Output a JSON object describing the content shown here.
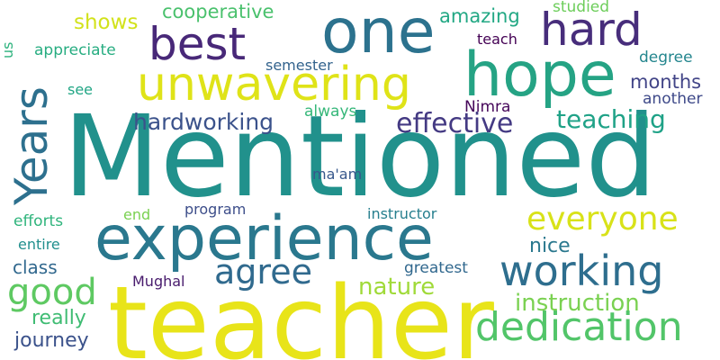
{
  "words": [
    {
      "text": "Mentioned",
      "color": "#21918c"
    },
    {
      "text": "teacher",
      "color": "#e8e419"
    },
    {
      "text": "experience",
      "color": "#2a788e"
    },
    {
      "text": "hope",
      "color": "#25a384"
    },
    {
      "text": "one",
      "color": "#2c728e"
    },
    {
      "text": "Years",
      "color": "#2d708e"
    },
    {
      "text": "working",
      "color": "#2e6e8e"
    },
    {
      "text": "unwavering",
      "color": "#dfe318"
    },
    {
      "text": "dedication",
      "color": "#52c569"
    },
    {
      "text": "best",
      "color": "#482878"
    },
    {
      "text": "hard",
      "color": "#472d7b"
    },
    {
      "text": "everyone",
      "color": "#d8e219"
    },
    {
      "text": "agree",
      "color": "#306a8e"
    },
    {
      "text": "good",
      "color": "#5ec962"
    },
    {
      "text": "teaching",
      "color": "#1fa287"
    },
    {
      "text": "effective",
      "color": "#443a83"
    },
    {
      "text": "hardworking",
      "color": "#3b528b"
    },
    {
      "text": "instruction",
      "color": "#7ad151"
    },
    {
      "text": "nature",
      "color": "#a0da39"
    },
    {
      "text": "amazing",
      "color": "#22a884"
    },
    {
      "text": "cooperative",
      "color": "#4ac16d"
    },
    {
      "text": "shows",
      "color": "#d2e21b"
    },
    {
      "text": "months",
      "color": "#414487"
    },
    {
      "text": "degree",
      "color": "#24868e"
    },
    {
      "text": "nice",
      "color": "#2a788e"
    },
    {
      "text": "really",
      "color": "#3fbc73"
    },
    {
      "text": "journey",
      "color": "#3b528b"
    },
    {
      "text": "class",
      "color": "#31688e"
    },
    {
      "text": "studied",
      "color": "#6ccd5a"
    },
    {
      "text": "teach",
      "color": "#440154"
    },
    {
      "text": "appreciate",
      "color": "#27ad81"
    },
    {
      "text": "another",
      "color": "#3e4989"
    },
    {
      "text": "semester",
      "color": "#33638d"
    },
    {
      "text": "always",
      "color": "#35b779"
    },
    {
      "text": "Nimra",
      "color": "#46075a"
    },
    {
      "text": "see",
      "color": "#21a685"
    },
    {
      "text": "ma'am",
      "color": "#38588c"
    },
    {
      "text": "efforts",
      "color": "#2fb47c"
    },
    {
      "text": "end",
      "color": "#7ad151"
    },
    {
      "text": "program",
      "color": "#3d4e8a"
    },
    {
      "text": "instructor",
      "color": "#277f8e"
    },
    {
      "text": "entire",
      "color": "#218f8d"
    },
    {
      "text": "Mughal",
      "color": "#481b6d"
    },
    {
      "text": "greatest",
      "color": "#31688e"
    },
    {
      "text": "us",
      "color": "#2db27d"
    }
  ]
}
